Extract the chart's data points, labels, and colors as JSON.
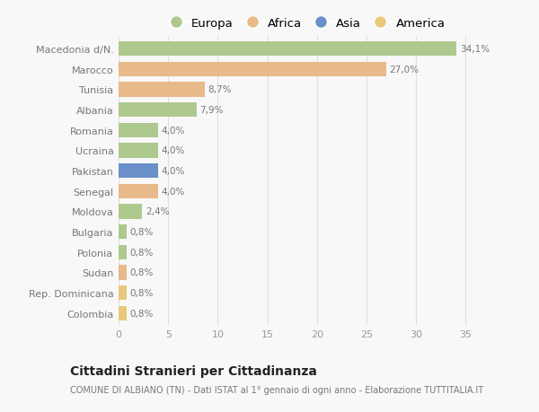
{
  "countries": [
    "Macedonia d/N.",
    "Marocco",
    "Tunisia",
    "Albania",
    "Romania",
    "Ucraina",
    "Pakistan",
    "Senegal",
    "Moldova",
    "Bulgaria",
    "Polonia",
    "Sudan",
    "Rep. Dominicana",
    "Colombia"
  ],
  "values": [
    34.1,
    27.0,
    8.7,
    7.9,
    4.0,
    4.0,
    4.0,
    4.0,
    2.4,
    0.8,
    0.8,
    0.8,
    0.8,
    0.8
  ],
  "labels": [
    "34,1%",
    "27,0%",
    "8,7%",
    "7,9%",
    "4,0%",
    "4,0%",
    "4,0%",
    "4,0%",
    "2,4%",
    "0,8%",
    "0,8%",
    "0,8%",
    "0,8%",
    "0,8%"
  ],
  "continents": [
    "Europa",
    "Africa",
    "Africa",
    "Europa",
    "Europa",
    "Europa",
    "Asia",
    "Africa",
    "Europa",
    "Europa",
    "Europa",
    "Africa",
    "America",
    "America"
  ],
  "colors": {
    "Europa": "#aec98e",
    "Africa": "#e8b98a",
    "Asia": "#6b8fc8",
    "America": "#e8c87a"
  },
  "legend_order": [
    "Europa",
    "Africa",
    "Asia",
    "America"
  ],
  "title": "Cittadini Stranieri per Cittadinanza",
  "subtitle": "COMUNE DI ALBIANO (TN) - Dati ISTAT al 1° gennaio di ogni anno - Elaborazione TUTTITALIA.IT",
  "xlabel_ticks": [
    0,
    5,
    10,
    15,
    20,
    25,
    30,
    35
  ],
  "xlim": [
    0,
    37.5
  ],
  "bg_color": "#f8f8f8",
  "grid_color": "#e0e0e0",
  "bar_height": 0.72
}
